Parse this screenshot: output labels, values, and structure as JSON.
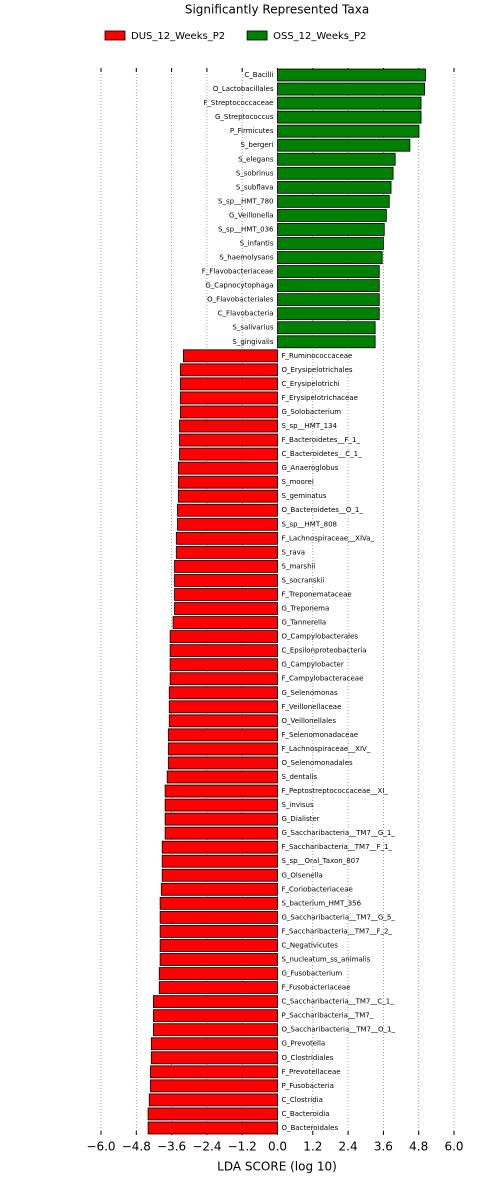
{
  "chart_data": {
    "type": "bar",
    "orientation": "horizontal",
    "title": "Significantly Represented Taxa",
    "xlabel": "LDA SCORE (log 10)",
    "categories": [
      "C_Bacilli",
      "O_Lactobacillales",
      "F_Streptococcaceae",
      "G_Streptococcus",
      "P_Firmicutes",
      "S_bergeri",
      "S_elegans",
      "S_sobrinus",
      "S_subflava",
      "S_sp__HMT_780",
      "G_Veillonella",
      "S_sp__HMT_036",
      "S_infantis",
      "S_haemolysans",
      "F_Flavobacteriaceae",
      "G_Capnocytophaga",
      "O_Flavobacteriales",
      "C_Flavobacteria",
      "S_salivarius",
      "S_gingivalis",
      "F_Ruminococcaceae",
      "O_Erysipelotrichales",
      "C_Erysipelotrichi",
      "F_Erysipelotrichaceae",
      "G_Solobacterium",
      "S_sp__HMT_134",
      "F_Bacteroidetes__F_1_",
      "C_Bacteroidetes__C_1_",
      "G_Anaeroglobus",
      "S_moorei",
      "S_geminatus",
      "O_Bacteroidetes__O_1_",
      "S_sp__HMT_808",
      "F_Lachnospiraceae__XIVa_",
      "S_rava",
      "S_marshii",
      "S_socranskii",
      "F_Treponemataceae",
      "G_Treponema",
      "G_Tannerella",
      "O_Campylobacterales",
      "C_Epsilonproteobacteria",
      "G_Campylobacter",
      "F_Campylobacteraceae",
      "G_Selenomonas",
      "F_Veillonellaceae",
      "O_Veillonellales",
      "F_Selenomonadaceae",
      "F_Lachnospiraceae__XIV_",
      "O_Selenomonadales",
      "S_dentalis",
      "F_Peptostreptococcaceae__XI_",
      "S_invisus",
      "G_Dialister",
      "G_Saccharibacteria__TM7__G_1_",
      "F_Saccharibacteria__TM7__F_1_",
      "S_sp__Oral_Taxon_807",
      "G_Olsenella",
      "F_Coriobacteriaceae",
      "S_bacterium_HMT_356",
      "G_Saccharibacteria__TM7__G_5_",
      "F_Saccharibacteria__TM7__F_2_",
      "C_Negativicutes",
      "S_nucleatum_ss_animalis",
      "G_Fusobacterium",
      "F_Fusobacteriaceae",
      "C_Saccharibacteria__TM7__C_1_",
      "P_Saccharibacteria__TM7_",
      "O_Saccharibacteria__TM7__O_1_",
      "G_Prevotella",
      "O_Clostridiales",
      "F_Prevotellaceae",
      "P_Fusobacteria",
      "C_Clostridia",
      "C_Bacteroidia",
      "O_Bacteroidales"
    ],
    "series": [
      {
        "name": "DUS_12_Weeks_P2",
        "color": "#ff0000",
        "values": [
          null,
          null,
          null,
          null,
          null,
          null,
          null,
          null,
          null,
          null,
          null,
          null,
          null,
          null,
          null,
          null,
          null,
          null,
          null,
          null,
          -3.2,
          -3.3,
          -3.3,
          -3.3,
          -3.3,
          -3.33,
          -3.33,
          -3.33,
          -3.37,
          -3.37,
          -3.37,
          -3.4,
          -3.4,
          -3.44,
          -3.44,
          -3.5,
          -3.5,
          -3.5,
          -3.5,
          -3.55,
          -3.65,
          -3.65,
          -3.65,
          -3.65,
          -3.68,
          -3.68,
          -3.68,
          -3.71,
          -3.71,
          -3.71,
          -3.75,
          -3.82,
          -3.82,
          -3.82,
          -3.82,
          -3.92,
          -3.92,
          -3.92,
          -3.95,
          -3.99,
          -3.99,
          -3.99,
          -3.99,
          -3.99,
          -4.02,
          -4.02,
          -4.22,
          -4.22,
          -4.22,
          -4.29,
          -4.29,
          -4.32,
          -4.32,
          -4.36,
          -4.4,
          -4.4
        ]
      },
      {
        "name": "OSS_12_Weeks_P2",
        "color": "#008000",
        "values": [
          5.03,
          5.0,
          4.88,
          4.88,
          4.81,
          4.5,
          4.0,
          3.93,
          3.86,
          3.8,
          3.7,
          3.63,
          3.6,
          3.56,
          3.46,
          3.46,
          3.46,
          3.46,
          3.32,
          3.32,
          null,
          null,
          null,
          null,
          null,
          null,
          null,
          null,
          null,
          null,
          null,
          null,
          null,
          null,
          null,
          null,
          null,
          null,
          null,
          null,
          null,
          null,
          null,
          null,
          null,
          null,
          null,
          null,
          null,
          null,
          null,
          null,
          null,
          null,
          null,
          null,
          null,
          null,
          null,
          null,
          null,
          null,
          null,
          null,
          null,
          null,
          null,
          null,
          null,
          null,
          null,
          null,
          null,
          null,
          null,
          null
        ]
      }
    ],
    "xlim": [
      -6,
      6
    ],
    "xticks": [
      {
        "value": -6,
        "label": "−6.0"
      },
      {
        "value": -4.8,
        "label": "−4.8"
      },
      {
        "value": -3.6,
        "label": "−3.6"
      },
      {
        "value": -2.4,
        "label": "−2.4"
      },
      {
        "value": -1.2,
        "label": "−1.2"
      },
      {
        "value": 0,
        "label": "0.0"
      },
      {
        "value": 1.2,
        "label": "1.2"
      },
      {
        "value": 2.4,
        "label": "2.4"
      },
      {
        "value": 3.6,
        "label": "3.6"
      },
      {
        "value": 4.8,
        "label": "4.8"
      },
      {
        "value": 6,
        "label": "6.0"
      }
    ],
    "grid": true
  }
}
